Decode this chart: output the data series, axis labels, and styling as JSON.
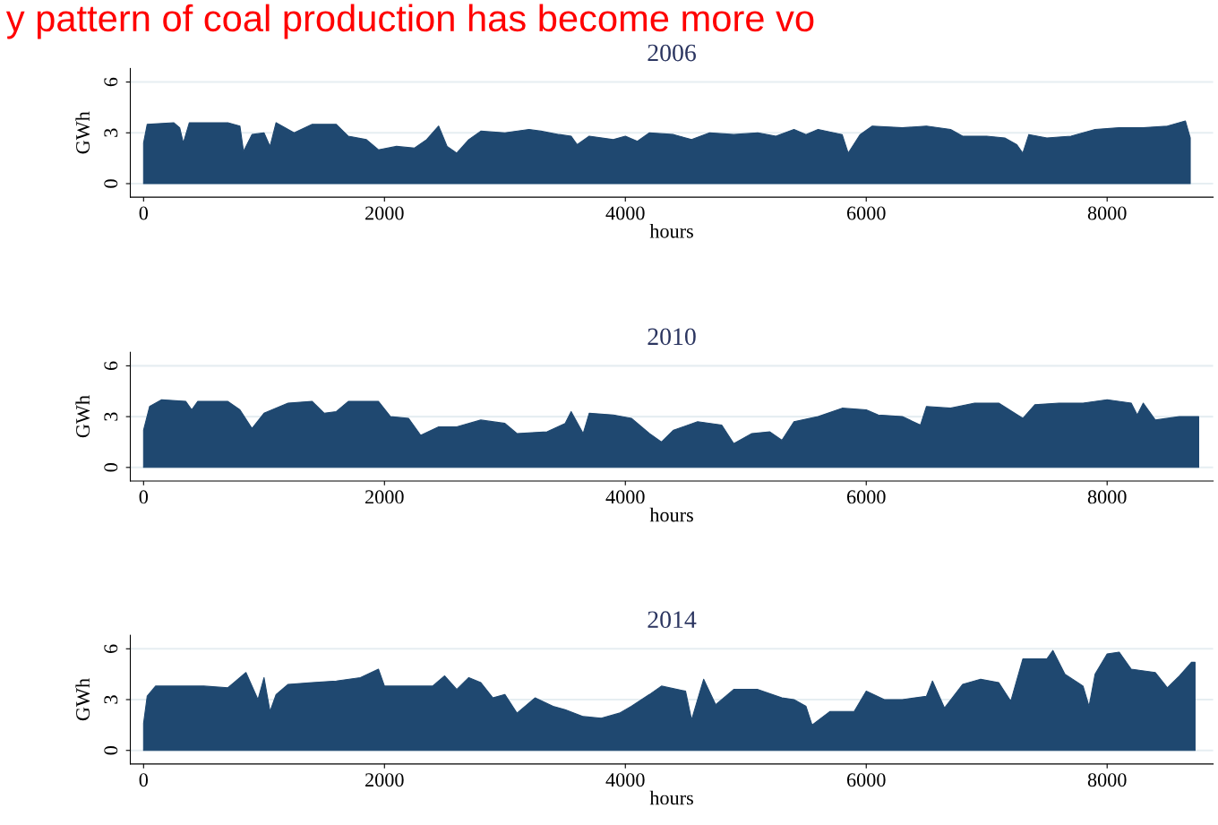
{
  "chart_data": [
    {
      "type": "area",
      "title": "2006",
      "xlabel": "hours",
      "ylabel": "GWh",
      "annotations": [
        "y pattern of coal production has become more vo"
      ],
      "xlim": [
        -110,
        8880
      ],
      "ylim": [
        -0.8,
        6.8
      ],
      "xticks": [
        0,
        2000,
        4000,
        6000,
        8000
      ],
      "yticks": [
        0,
        3,
        6
      ],
      "grid": "y",
      "series": [
        {
          "color": "#1f4870",
          "x": [
            0,
            30,
            250,
            300,
            330,
            380,
            700,
            800,
            830,
            900,
            1000,
            1050,
            1100,
            1250,
            1400,
            1600,
            1700,
            1850,
            1950,
            2100,
            2250,
            2350,
            2450,
            2520,
            2600,
            2700,
            2800,
            3000,
            3200,
            3300,
            3450,
            3550,
            3600,
            3700,
            3900,
            4000,
            4100,
            4200,
            4400,
            4550,
            4700,
            4900,
            5100,
            5250,
            5400,
            5500,
            5600,
            5800,
            5850,
            5950,
            6050,
            6300,
            6500,
            6700,
            6800,
            7000,
            7150,
            7250,
            7300,
            7350,
            7500,
            7700,
            7900,
            8100,
            8300,
            8500,
            8650,
            8690
          ],
          "values": [
            2.4,
            3.5,
            3.6,
            3.3,
            2.4,
            3.6,
            3.6,
            3.4,
            1.9,
            2.9,
            3.0,
            2.2,
            3.6,
            3.0,
            3.5,
            3.5,
            2.8,
            2.6,
            2.0,
            2.2,
            2.1,
            2.6,
            3.4,
            2.2,
            1.8,
            2.6,
            3.1,
            3.0,
            3.2,
            3.1,
            2.9,
            2.8,
            2.3,
            2.8,
            2.6,
            2.8,
            2.5,
            3.0,
            2.9,
            2.6,
            3.0,
            2.9,
            3.0,
            2.8,
            3.2,
            2.9,
            3.2,
            2.9,
            1.8,
            2.9,
            3.4,
            3.3,
            3.4,
            3.2,
            2.8,
            2.8,
            2.7,
            2.3,
            1.8,
            2.9,
            2.7,
            2.8,
            3.2,
            3.3,
            3.3,
            3.4,
            3.7,
            2.7
          ]
        }
      ]
    },
    {
      "type": "area",
      "title": "2010",
      "xlabel": "hours",
      "ylabel": "GWh",
      "xlim": [
        -110,
        8880
      ],
      "ylim": [
        -0.8,
        6.8
      ],
      "xticks": [
        0,
        2000,
        4000,
        6000,
        8000
      ],
      "yticks": [
        0,
        3,
        6
      ],
      "grid": "y",
      "series": [
        {
          "color": "#1f4870",
          "x": [
            0,
            50,
            150,
            350,
            400,
            450,
            700,
            800,
            900,
            1000,
            1200,
            1400,
            1500,
            1600,
            1700,
            1950,
            2050,
            2200,
            2300,
            2450,
            2600,
            2800,
            3000,
            3100,
            3350,
            3500,
            3550,
            3650,
            3700,
            3900,
            4050,
            4200,
            4300,
            4400,
            4600,
            4800,
            4900,
            5050,
            5200,
            5300,
            5400,
            5600,
            5800,
            6000,
            6100,
            6300,
            6450,
            6500,
            6700,
            6900,
            7100,
            7300,
            7400,
            7600,
            7800,
            8000,
            8200,
            8250,
            8300,
            8400,
            8600,
            8760
          ],
          "values": [
            2.2,
            3.6,
            4.0,
            3.9,
            3.4,
            3.9,
            3.9,
            3.4,
            2.3,
            3.2,
            3.8,
            3.9,
            3.2,
            3.3,
            3.9,
            3.9,
            3.0,
            2.9,
            1.9,
            2.4,
            2.4,
            2.8,
            2.6,
            2.0,
            2.1,
            2.6,
            3.3,
            2.0,
            3.2,
            3.1,
            2.9,
            2.0,
            1.5,
            2.2,
            2.7,
            2.5,
            1.4,
            2.0,
            2.1,
            1.6,
            2.7,
            3.0,
            3.5,
            3.4,
            3.1,
            3.0,
            2.5,
            3.6,
            3.5,
            3.8,
            3.8,
            2.9,
            3.7,
            3.8,
            3.8,
            4.0,
            3.8,
            3.1,
            3.8,
            2.8,
            3.0,
            3.0
          ]
        }
      ]
    },
    {
      "type": "area",
      "title": "2014",
      "xlabel": "hours",
      "ylabel": "GWh",
      "xlim": [
        -110,
        8880
      ],
      "ylim": [
        -0.8,
        6.8
      ],
      "xticks": [
        0,
        2000,
        4000,
        6000,
        8000
      ],
      "yticks": [
        0,
        3,
        6
      ],
      "grid": "y",
      "series": [
        {
          "color": "#1f4870",
          "x": [
            0,
            30,
            100,
            300,
            500,
            700,
            850,
            950,
            1000,
            1050,
            1100,
            1200,
            1400,
            1600,
            1800,
            1950,
            2000,
            2200,
            2400,
            2500,
            2600,
            2700,
            2800,
            2900,
            3000,
            3100,
            3250,
            3400,
            3500,
            3650,
            3800,
            3950,
            4050,
            4200,
            4300,
            4500,
            4550,
            4650,
            4750,
            4900,
            5100,
            5300,
            5400,
            5500,
            5550,
            5700,
            5900,
            6000,
            6150,
            6300,
            6500,
            6550,
            6650,
            6800,
            6950,
            7100,
            7200,
            7300,
            7500,
            7550,
            7650,
            7800,
            7850,
            7900,
            8000,
            8100,
            8200,
            8400,
            8500,
            8600,
            8700,
            8730
          ],
          "values": [
            1.6,
            3.2,
            3.8,
            3.8,
            3.8,
            3.7,
            4.6,
            3.0,
            4.3,
            2.3,
            3.3,
            3.9,
            4.0,
            4.1,
            4.3,
            4.8,
            3.8,
            3.8,
            3.8,
            4.4,
            3.6,
            4.3,
            4.0,
            3.1,
            3.3,
            2.2,
            3.1,
            2.6,
            2.4,
            2.0,
            1.9,
            2.2,
            2.6,
            3.3,
            3.8,
            3.5,
            1.8,
            4.2,
            2.7,
            3.6,
            3.6,
            3.1,
            3.0,
            2.6,
            1.5,
            2.3,
            2.3,
            3.5,
            3.0,
            3.0,
            3.2,
            4.1,
            2.5,
            3.9,
            4.2,
            4.0,
            2.9,
            5.4,
            5.4,
            5.9,
            4.5,
            3.8,
            2.6,
            4.5,
            5.7,
            5.8,
            4.8,
            4.6,
            3.7,
            4.4,
            5.2,
            5.2
          ]
        }
      ]
    }
  ]
}
